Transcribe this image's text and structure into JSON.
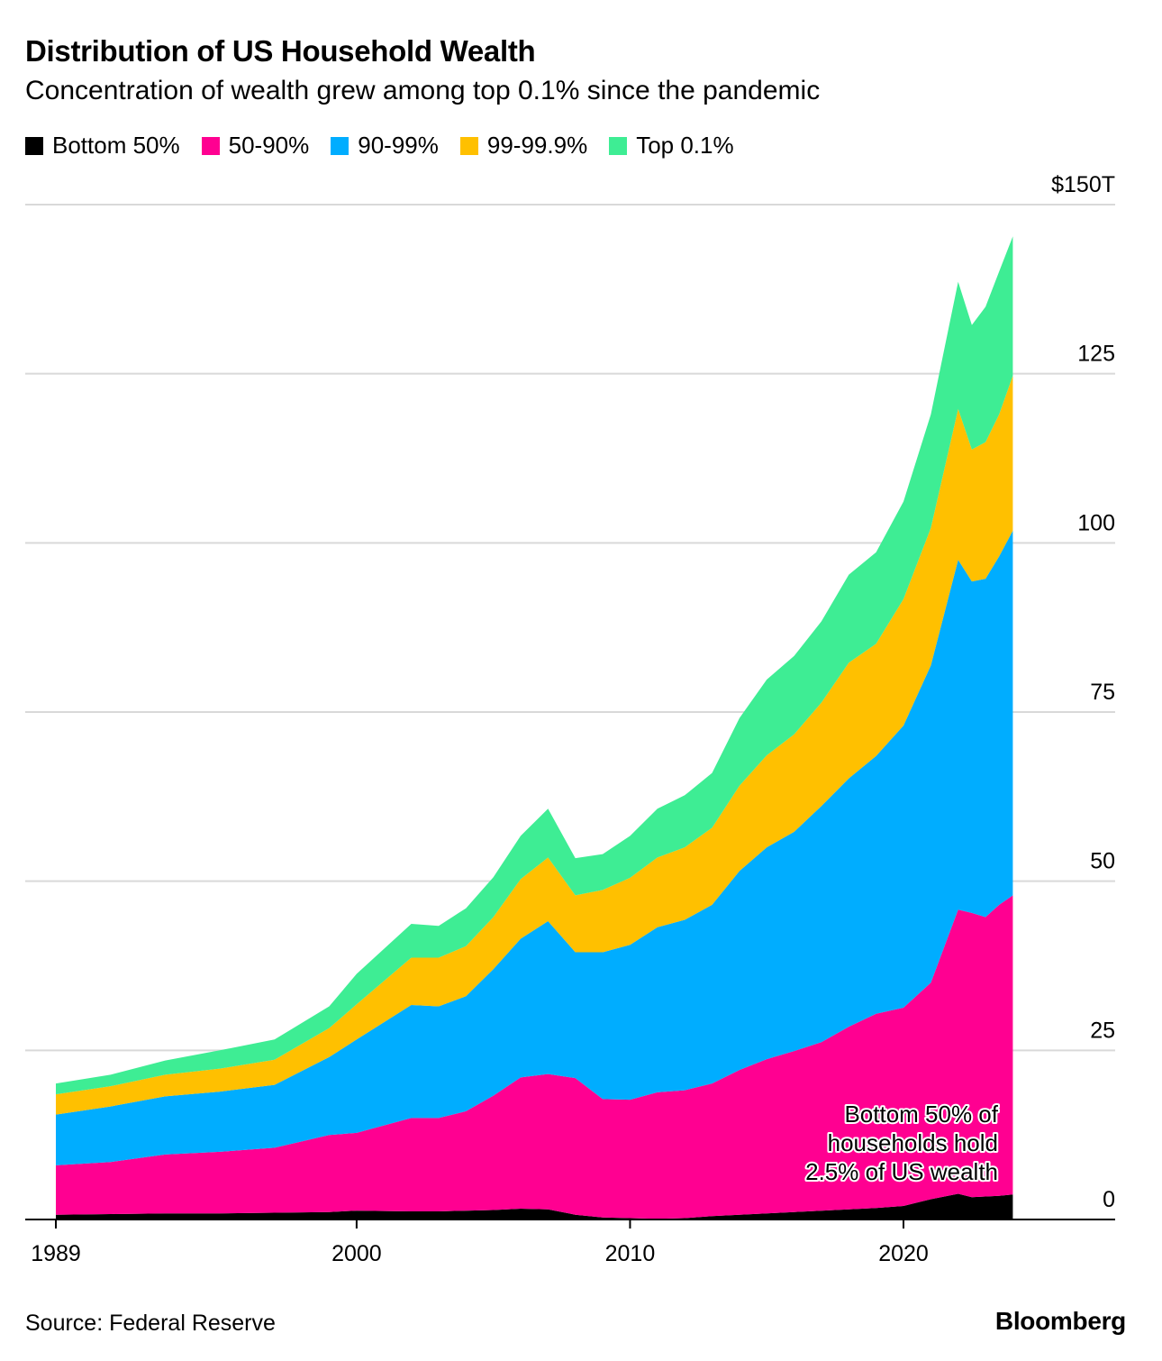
{
  "title": "Distribution of US Household Wealth",
  "subtitle": "Concentration of wealth grew among top 0.1% since the pandemic",
  "source": "Source: Federal Reserve",
  "brand": "Bloomberg",
  "annotation": [
    "Bottom 50% of",
    "households hold",
    "2.5% of US wealth"
  ],
  "legend": [
    {
      "label": "Bottom 50%",
      "color": "#000000"
    },
    {
      "label": "50-90%",
      "color": "#ff0091"
    },
    {
      "label": "90-99%",
      "color": "#00adff"
    },
    {
      "label": "99-99.9%",
      "color": "#ffc000"
    },
    {
      "label": "Top 0.1%",
      "color": "#3eed94"
    }
  ],
  "chart_data": {
    "type": "area",
    "stacked": true,
    "ylim": [
      0,
      150
    ],
    "yticks": [
      0,
      25,
      50,
      75,
      100,
      125,
      150
    ],
    "ytick_labels": [
      "0",
      "25",
      "50",
      "75",
      "100",
      "125",
      "$150T"
    ],
    "xlim": [
      1989,
      2026
    ],
    "xticks": [
      1989,
      2000,
      2010,
      2020
    ],
    "xtick_labels": [
      "1989",
      "2000",
      "2010",
      "2020"
    ],
    "grid": true,
    "x": [
      1989,
      1991,
      1993,
      1995,
      1997,
      1999,
      2000,
      2002,
      2003,
      2004,
      2005,
      2006,
      2007,
      2008,
      2009,
      2010,
      2011,
      2012,
      2013,
      2014,
      2015,
      2016,
      2017,
      2018,
      2019,
      2020,
      2021,
      2022,
      2022.5,
      2023,
      2023.5,
      2024
    ],
    "series": [
      {
        "name": "Bottom 50%",
        "values": [
          0.7,
          0.8,
          0.9,
          0.9,
          1.0,
          1.1,
          1.3,
          1.2,
          1.2,
          1.3,
          1.4,
          1.6,
          1.5,
          0.7,
          0.3,
          0.2,
          0.1,
          0.2,
          0.5,
          0.7,
          0.9,
          1.1,
          1.3,
          1.5,
          1.7,
          2.0,
          3.0,
          3.8,
          3.3,
          3.4,
          3.5,
          3.7
        ]
      },
      {
        "name": "50-90%",
        "values": [
          7.3,
          7.7,
          8.7,
          9.1,
          9.6,
          11.4,
          11.5,
          13.8,
          13.8,
          14.7,
          16.9,
          19.4,
          20.0,
          20.2,
          17.5,
          17.5,
          18.7,
          18.9,
          19.6,
          21.4,
          22.8,
          23.8,
          24.9,
          27.0,
          28.7,
          29.3,
          32.0,
          42.0,
          42.0,
          41.3,
          43.0,
          44.2
        ]
      },
      {
        "name": "90-99%",
        "values": [
          7.5,
          8.2,
          8.6,
          8.9,
          9.3,
          11.5,
          13.8,
          16.7,
          16.5,
          17.0,
          18.7,
          20.5,
          22.6,
          18.6,
          21.7,
          22.9,
          24.4,
          25.2,
          26.4,
          29.4,
          31.3,
          32.4,
          34.9,
          36.7,
          38.1,
          41.7,
          46.9,
          51.7,
          49.0,
          50.0,
          51.5,
          53.9
        ]
      },
      {
        "name": "99-99.9%",
        "values": [
          3.0,
          3.0,
          3.2,
          3.4,
          3.7,
          4.3,
          5.2,
          7.0,
          7.2,
          7.4,
          7.7,
          8.8,
          9.4,
          8.4,
          9.2,
          9.9,
          10.3,
          10.7,
          11.4,
          12.6,
          13.6,
          14.4,
          15.3,
          17.1,
          16.6,
          18.7,
          20.3,
          22.3,
          19.5,
          20.2,
          21.0,
          22.9
        ]
      },
      {
        "name": "Top 0.1%",
        "values": [
          1.6,
          1.7,
          2.1,
          2.7,
          3.0,
          3.2,
          4.5,
          5.0,
          4.7,
          5.6,
          5.9,
          6.4,
          7.2,
          5.5,
          5.3,
          6.2,
          7.2,
          7.7,
          8.1,
          10.0,
          11.2,
          11.6,
          12.0,
          13.0,
          13.5,
          14.4,
          16.8,
          18.8,
          18.4,
          20.0,
          21.1,
          20.6
        ]
      }
    ]
  }
}
